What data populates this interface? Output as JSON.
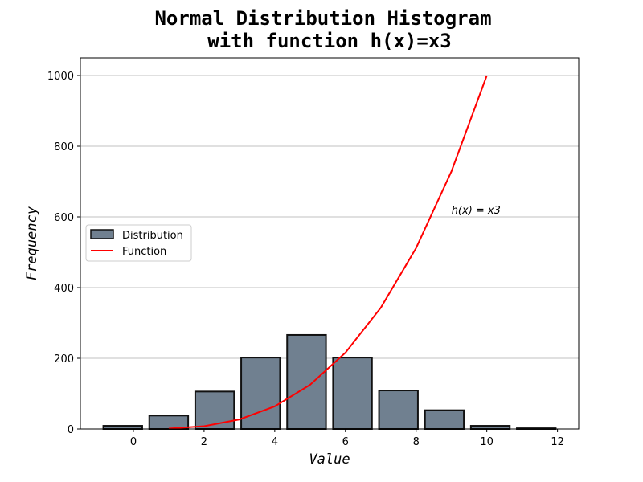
{
  "chart_data": {
    "type": "bar",
    "title": [
      "Normal Distribution Histogram",
      "with function h(x)=x3"
    ],
    "xlabel": "Value",
    "ylabel": "Frequency",
    "xlim": [
      -1.5,
      12.6
    ],
    "ylim": [
      0,
      1050
    ],
    "xticks": [
      0,
      2,
      4,
      6,
      8,
      10,
      12
    ],
    "yticks": [
      0,
      200,
      400,
      600,
      800,
      1000
    ],
    "grid": "y",
    "legend_position": "center-left",
    "bars": {
      "name": "Distribution",
      "color": "#708090",
      "edge_color": "#111111",
      "width": 1.1,
      "x": [
        -0.3,
        1.0,
        2.3,
        3.6,
        4.9,
        6.2,
        7.5,
        8.8,
        10.1,
        11.4
      ],
      "values": [
        9,
        38,
        106,
        202,
        266,
        202,
        109,
        53,
        9,
        2
      ]
    },
    "line": {
      "name": "Function",
      "color": "#ff0000",
      "x": [
        1,
        2,
        3,
        4,
        5,
        6,
        7,
        8,
        9,
        10
      ],
      "values": [
        1,
        8,
        27,
        64,
        125,
        216,
        343,
        512,
        729,
        1000
      ]
    },
    "annotation": {
      "text": "h(x) = x3",
      "x": 9.0,
      "y": 620
    }
  }
}
